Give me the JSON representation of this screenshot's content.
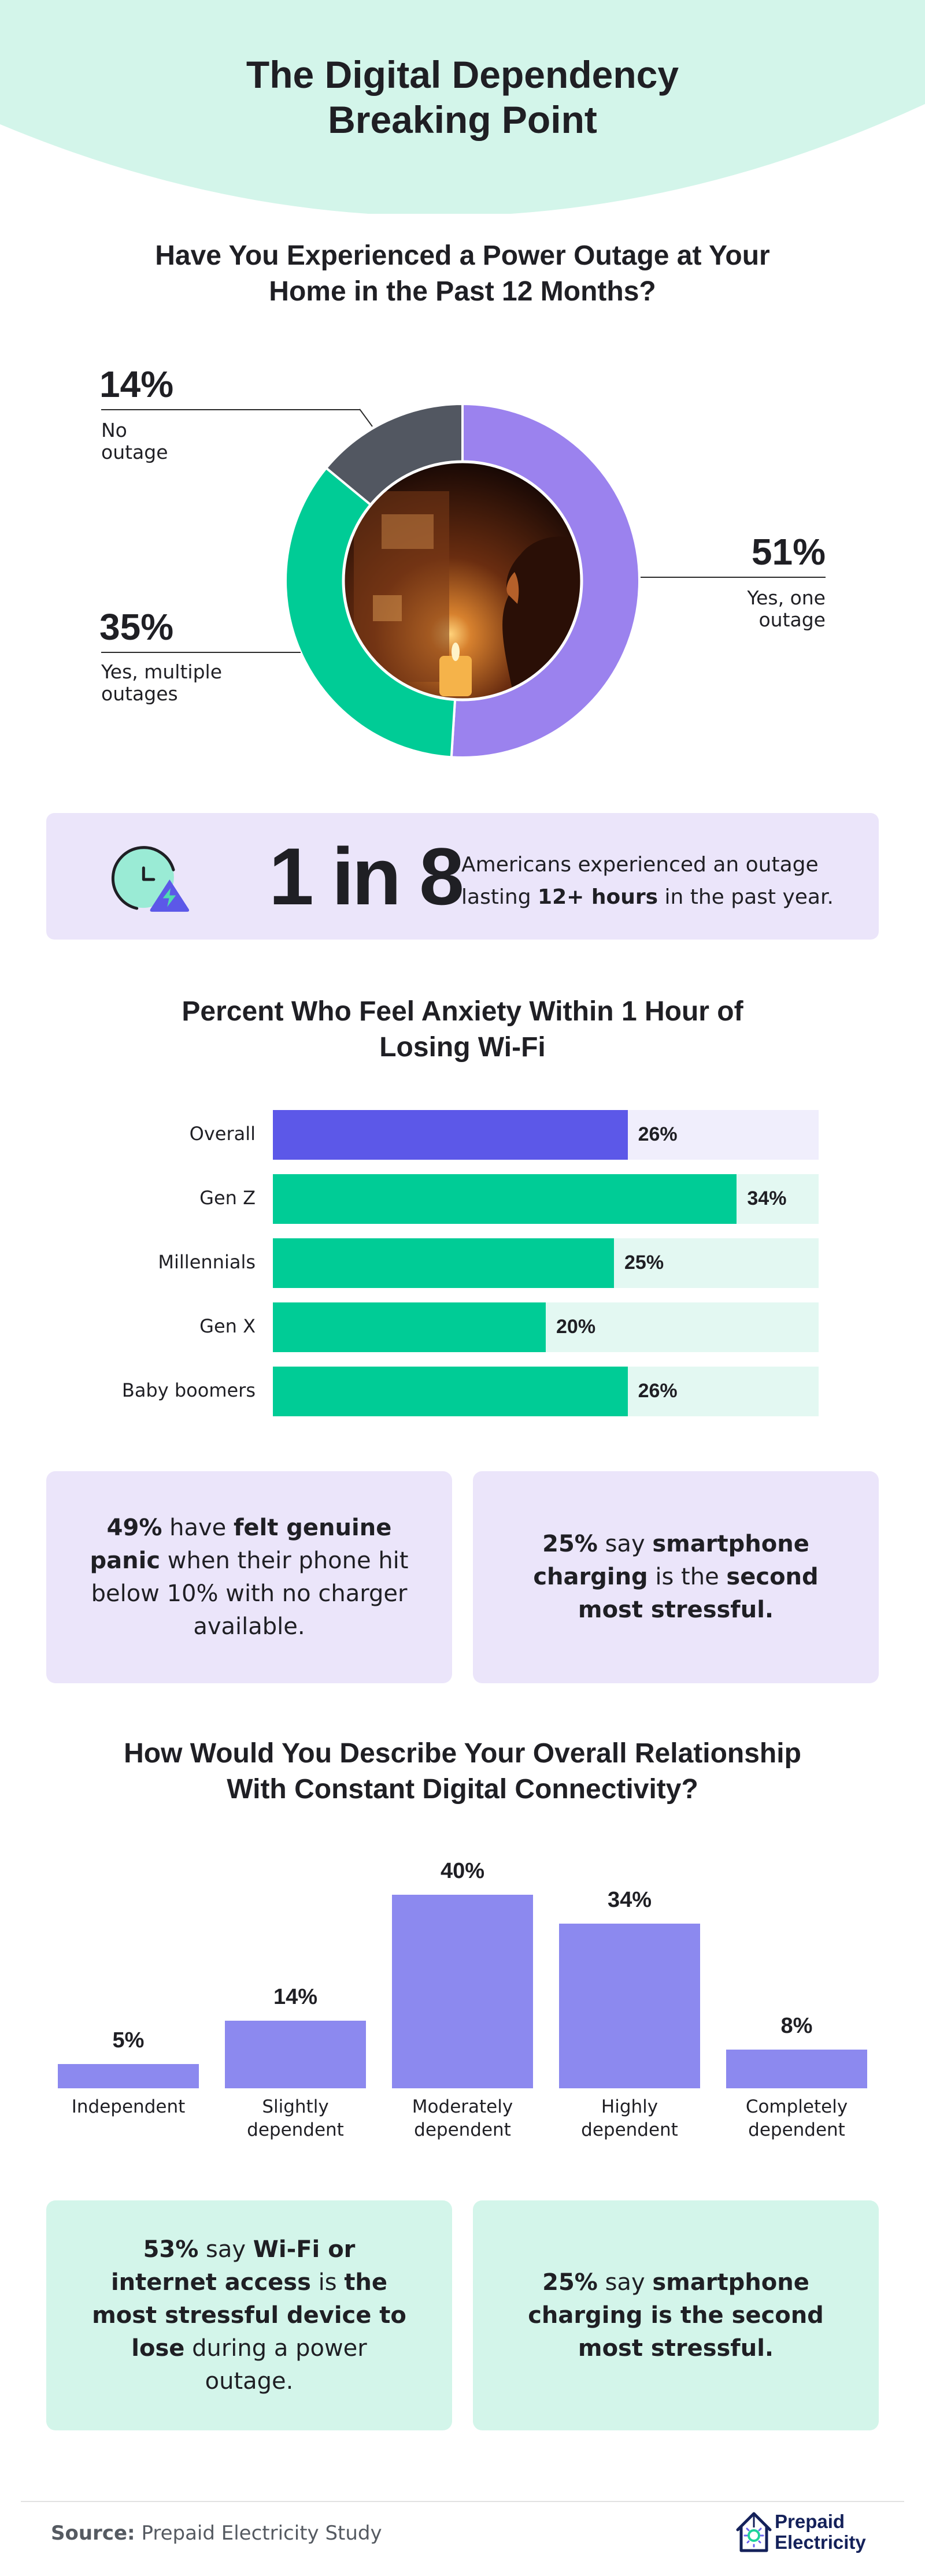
{
  "header": {
    "title_line1": "The Digital Dependency",
    "title_line2": "Breaking Point",
    "background": "#d3f5ea"
  },
  "chart_data": [
    {
      "type": "pie",
      "variant": "donut",
      "title": "Have You Experienced a Power Outage at Your Home in the Past 12 Months?",
      "title_line1": "Have You Experienced a Power Outage at Your",
      "title_line2": "Home in the Past 12 Months?",
      "slices": [
        {
          "label_line1": "Yes, one",
          "label_line2": "outage",
          "value": 51,
          "value_label": "51%",
          "color": "#9b82ee"
        },
        {
          "label_line1": "Yes, multiple",
          "label_line2": "outages",
          "value": 35,
          "value_label": "35%",
          "color": "#00cc96"
        },
        {
          "label_line1": "No",
          "label_line2": "outage",
          "value": 14,
          "value_label": "14%",
          "color": "#525761"
        }
      ],
      "center_image": "photo-person-candle-breaker-box"
    },
    {
      "type": "bar",
      "orientation": "horizontal",
      "title_line1": "Percent Who Feel Anxiety Within 1 Hour of",
      "title_line2": "Losing Wi-Fi",
      "xlim": [
        0,
        40
      ],
      "categories": [
        "Overall",
        "Gen Z",
        "Millennials",
        "Gen X",
        "Baby boomers"
      ],
      "values": [
        26,
        34,
        25,
        20,
        26
      ],
      "value_labels": [
        "26%",
        "34%",
        "25%",
        "20%",
        "26%"
      ],
      "colors": {
        "overall": "#5c58e8",
        "overall_track": "#f0eefc",
        "group": "#00cc96",
        "group_track": "#e3f8f2"
      }
    },
    {
      "type": "bar",
      "orientation": "vertical",
      "title_line1": "How Would You Describe Your Overall Relationship",
      "title_line2": "With Constant Digital Connectivity?",
      "ylim": [
        0,
        40
      ],
      "categories": [
        {
          "line1": "Independent",
          "line2": ""
        },
        {
          "line1": "Slightly",
          "line2": "dependent"
        },
        {
          "line1": "Moderately",
          "line2": "dependent"
        },
        {
          "line1": "Highly",
          "line2": "dependent"
        },
        {
          "line1": "Completely",
          "line2": "dependent"
        }
      ],
      "values": [
        5,
        14,
        40,
        34,
        8
      ],
      "value_labels": [
        "5%",
        "14%",
        "40%",
        "34%",
        "8%"
      ],
      "color": "#8c89ef"
    }
  ],
  "stat": {
    "icon": "clock-power-warning-icon",
    "big": "1 in 8",
    "line1": "Americans experienced an outage",
    "line2_pre": "lasting ",
    "line2_bold": "12+ hours",
    "line2_post": " in the past year."
  },
  "callouts": [
    {
      "parts": [
        {
          "t": "49%",
          "b": true
        },
        {
          "t": " have ",
          "b": false
        },
        {
          "t": "felt genuine panic",
          "b": true
        },
        {
          "t": " when their phone hit below 10% with no charger available.",
          "b": false
        }
      ]
    },
    {
      "parts": [
        {
          "t": "25%",
          "b": true
        },
        {
          "t": " say ",
          "b": false
        },
        {
          "t": "smartphone charging",
          "b": true
        },
        {
          "t": " is the ",
          "b": false
        },
        {
          "t": "second most stressful.",
          "b": true
        }
      ]
    },
    {
      "parts": [
        {
          "t": "53%",
          "b": true
        },
        {
          "t": " say ",
          "b": false
        },
        {
          "t": "Wi-Fi or internet access",
          "b": true
        },
        {
          "t": " is ",
          "b": false
        },
        {
          "t": "the most stressful device to lose",
          "b": true
        },
        {
          "t": " during a power outage.",
          "b": false
        }
      ]
    },
    {
      "parts": [
        {
          "t": "25%",
          "b": true
        },
        {
          "t": " say ",
          "b": false
        },
        {
          "t": "smartphone charging is the second most stressful.",
          "b": true
        }
      ]
    }
  ],
  "footer": {
    "source_label": "Source:",
    "source_text": " Prepaid Electricity Study",
    "logo_line1": "Prepaid",
    "logo_line2": "Electricity"
  }
}
